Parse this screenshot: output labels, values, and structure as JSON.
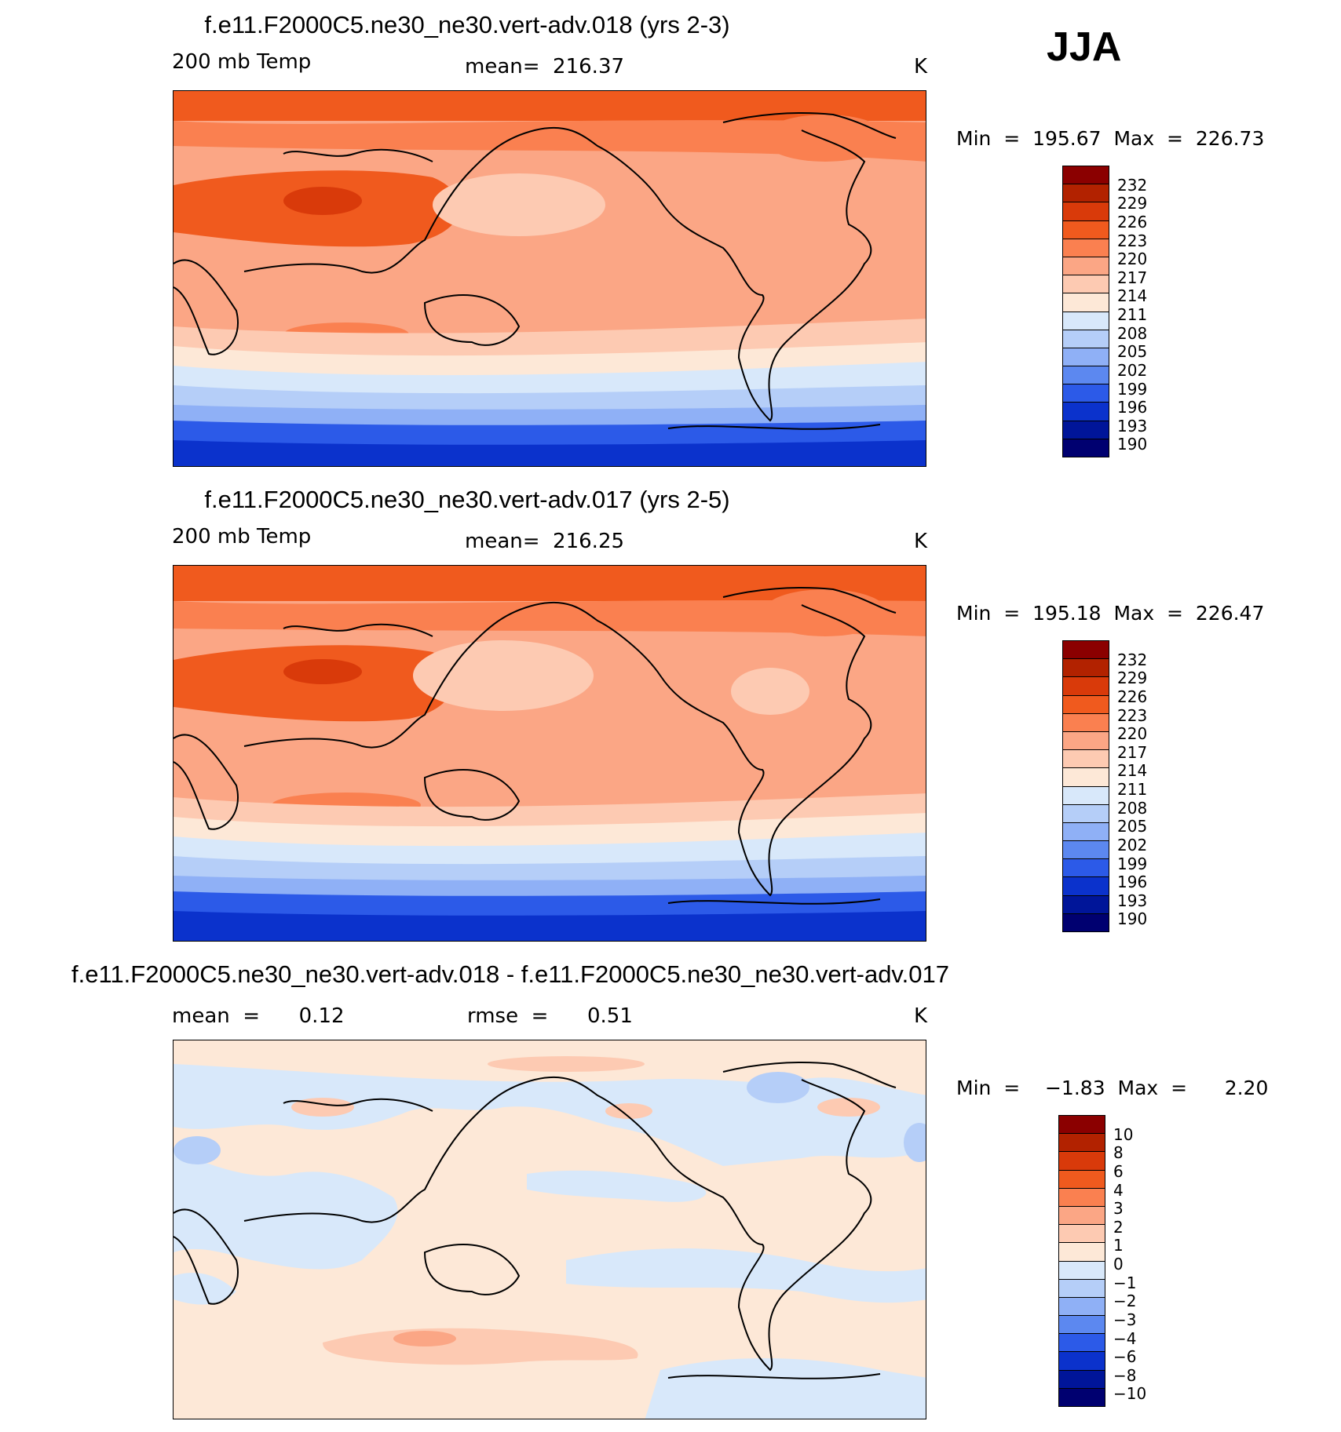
{
  "season": "JJA",
  "panels": [
    {
      "title": "f.e11.F2000C5.ne30_ne30.vert-adv.018 (yrs 2-3)",
      "left_label": "200 mb Temp",
      "center_label": "mean=  216.37",
      "units": "K",
      "minmax": "Min  =  195.67  Max  =  226.73",
      "colorbar_labels": [
        "232",
        "229",
        "226",
        "223",
        "220",
        "217",
        "214",
        "211",
        "208",
        "205",
        "202",
        "199",
        "196",
        "193",
        "190"
      ]
    },
    {
      "title": "f.e11.F2000C5.ne30_ne30.vert-adv.017 (yrs 2-5)",
      "left_label": "200 mb Temp",
      "center_label": "mean=  216.25",
      "units": "K",
      "minmax": "Min  =  195.18  Max  =  226.47",
      "colorbar_labels": [
        "232",
        "229",
        "226",
        "223",
        "220",
        "217",
        "214",
        "211",
        "208",
        "205",
        "202",
        "199",
        "196",
        "193",
        "190"
      ]
    },
    {
      "title": "f.e11.F2000C5.ne30_ne30.vert-adv.018 - f.e11.F2000C5.ne30_ne30.vert-adv.017",
      "left_label": "mean  =      0.12",
      "center_label": "rmse  =      0.51",
      "units": "K",
      "minmax": "Min  =    −1.83  Max  =      2.20",
      "colorbar_labels": [
        "10",
        "8",
        "6",
        "4",
        "3",
        "2",
        "1",
        "0",
        "−1",
        "−2",
        "−3",
        "−4",
        "−6",
        "−8",
        "−10"
      ]
    }
  ],
  "colorbar_colors": [
    "#8b0000",
    "#b22200",
    "#d93a0a",
    "#f05a1e",
    "#fa8050",
    "#fba685",
    "#fdcab2",
    "#fde8d7",
    "#d8e8fa",
    "#b5cef8",
    "#8fb0f6",
    "#5c88f0",
    "#2c5ae8",
    "#0b32cc",
    "#001599",
    "#000070"
  ]
}
